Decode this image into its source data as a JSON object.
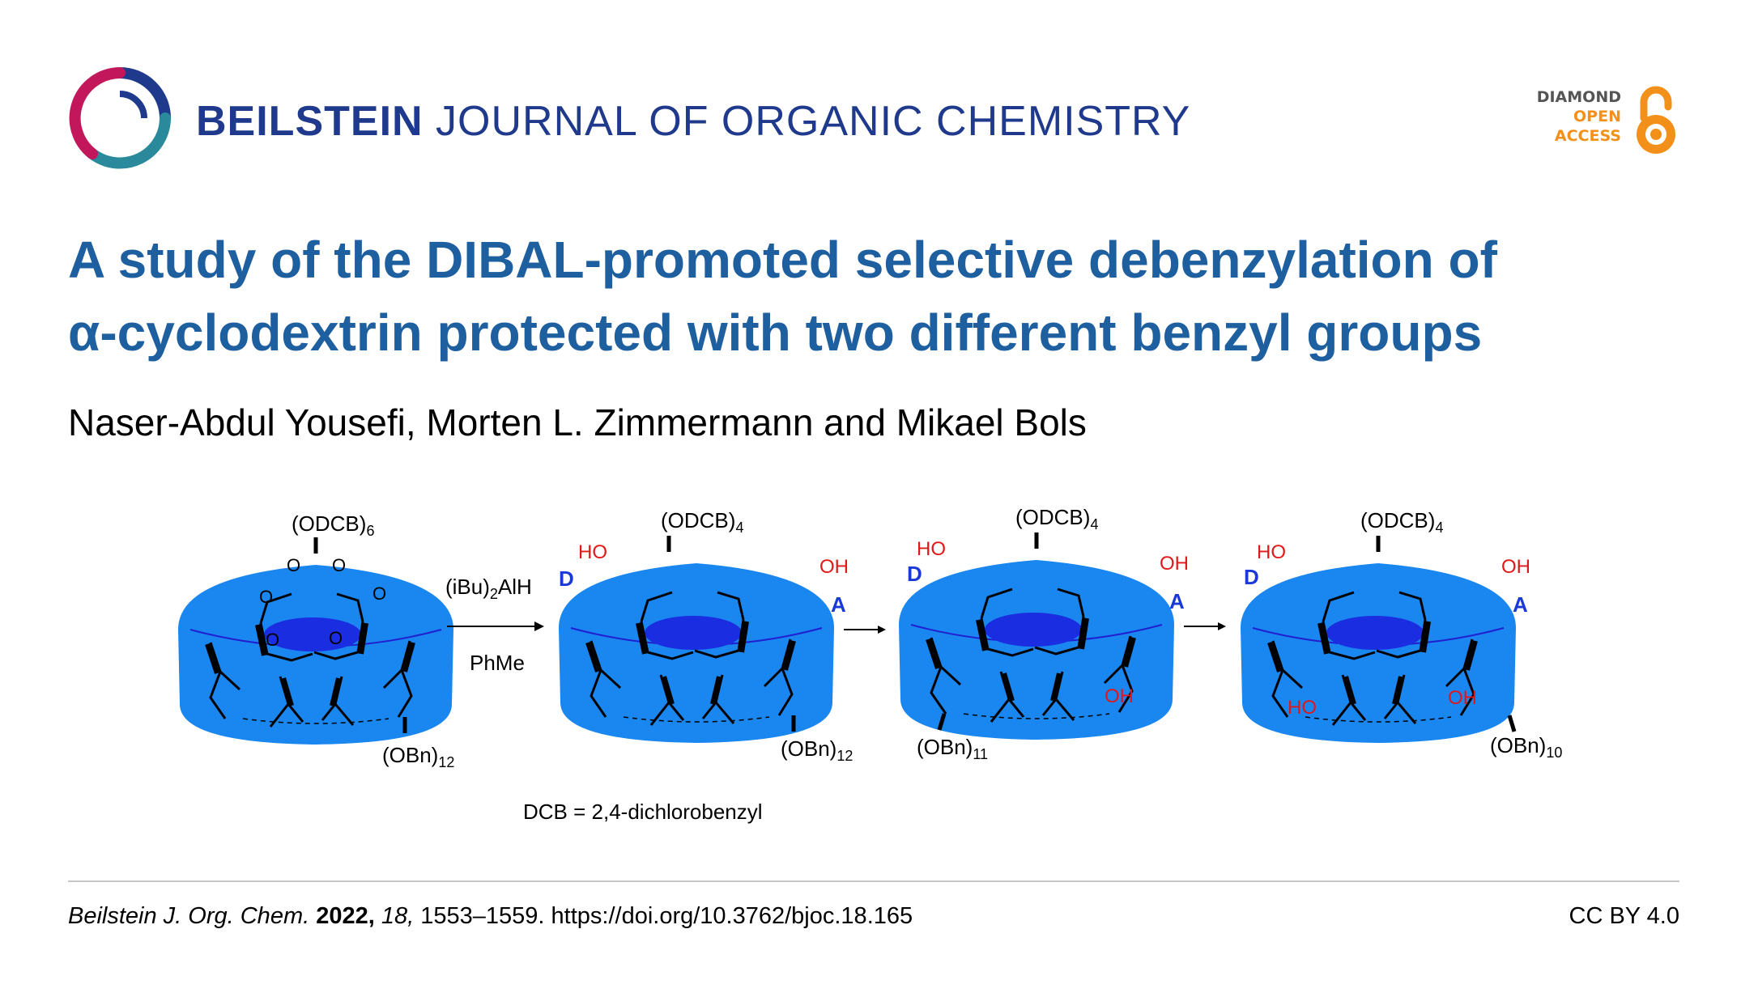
{
  "header": {
    "journal_strong": "BEILSTEIN",
    "journal_light": "JOURNAL OF ORGANIC CHEMISTRY",
    "badge_line1": "DIAMOND",
    "badge_line2": "OPEN",
    "badge_line3": "ACCESS",
    "icons": [
      "journal-logo-icon",
      "open-access-lock-icon"
    ]
  },
  "title": {
    "line1": "A study of the DIBAL-promoted selective debenzylation of",
    "line2": "α-cyclodextrin protected with two different benzyl groups"
  },
  "authors": "Naser-Abdul Yousefi, Morten L. Zimmermann and Mikael Bols",
  "scheme": {
    "reagent_top": "(iBu)",
    "reagent_sub": "2",
    "reagent_end": "AlH",
    "solvent": "PhMe",
    "footnote": "DCB = 2,4-dichlorobenzyl",
    "structures": [
      {
        "top_label": "(ODCB)",
        "top_sub": "6",
        "bottom_label": "(OBn)",
        "bottom_sub": "12"
      },
      {
        "top_label": "(ODCB)",
        "top_sub": "4",
        "bottom_label": "(OBn)",
        "bottom_sub": "12"
      },
      {
        "top_label": "(ODCB)",
        "top_sub": "4",
        "bottom_label": "(OBn)",
        "bottom_sub": "11"
      },
      {
        "top_label": "(ODCB)",
        "top_sub": "4",
        "bottom_label": "(OBn)",
        "bottom_sub": "10"
      }
    ],
    "ring_labels": {
      "d": "D",
      "a": "A",
      "o": "O",
      "ho": "HO",
      "oh": "OH"
    },
    "colors": {
      "cone": "#1a86f0",
      "cone_dark": "#1565d8",
      "cavity": "#1a2de0",
      "blue_label": "#1a3ad8",
      "red_label": "#e01818"
    }
  },
  "footer": {
    "journal_abbrev": "Beilstein J. Org. Chem.",
    "year": "2022,",
    "volume": "18,",
    "pages_doi": "1553–1559. https://doi.org/10.3762/bjoc.18.165",
    "license": "CC BY 4.0"
  }
}
